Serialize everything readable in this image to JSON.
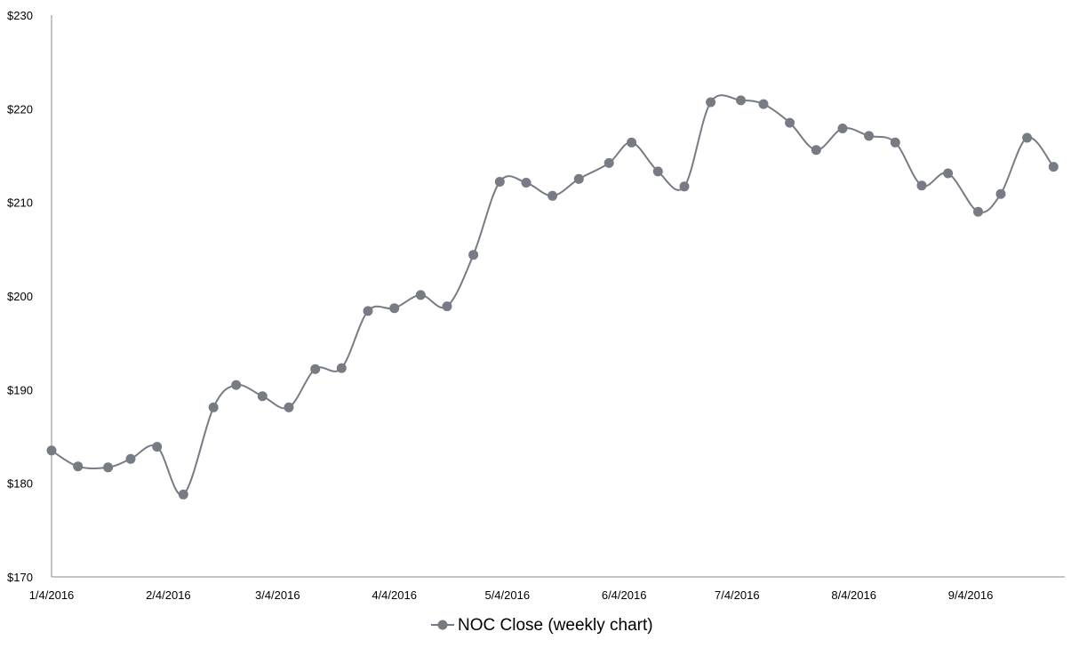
{
  "chart_data": {
    "type": "line",
    "title": "",
    "xlabel": "",
    "ylabel": "",
    "x": [
      "1/4/2016",
      "1/11/2016",
      "1/19/2016",
      "1/25/2016",
      "2/1/2016",
      "2/8/2016",
      "2/16/2016",
      "2/22/2016",
      "2/29/2016",
      "3/7/2016",
      "3/14/2016",
      "3/21/2016",
      "3/28/2016",
      "4/4/2016",
      "4/11/2016",
      "4/18/2016",
      "4/25/2016",
      "5/2/2016",
      "5/9/2016",
      "5/16/2016",
      "5/23/2016",
      "5/31/2016",
      "6/6/2016",
      "6/13/2016",
      "6/20/2016",
      "6/27/2016",
      "7/5/2016",
      "7/11/2016",
      "7/18/2016",
      "7/25/2016",
      "8/1/2016",
      "8/8/2016",
      "8/15/2016",
      "8/22/2016",
      "8/29/2016",
      "9/6/2016",
      "9/12/2016",
      "9/19/2016",
      "9/26/2016"
    ],
    "series": [
      {
        "name": "NOC Close (weekly chart)",
        "values": [
          183.5,
          181.8,
          181.7,
          182.6,
          183.9,
          178.8,
          188.1,
          190.5,
          189.3,
          188.1,
          192.2,
          192.3,
          198.4,
          198.7,
          200.1,
          198.9,
          204.4,
          212.2,
          212.1,
          210.7,
          212.5,
          214.2,
          216.4,
          213.3,
          211.7,
          220.7,
          220.9,
          220.5,
          218.5,
          215.6,
          217.9,
          217.1,
          216.4,
          211.8,
          213.1,
          209.0,
          210.9,
          216.9,
          213.8
        ]
      }
    ],
    "ylim": [
      170,
      230
    ],
    "y_ticks": [
      170,
      180,
      190,
      200,
      210,
      220,
      230
    ],
    "y_tick_labels": [
      "$170",
      "$180",
      "$190",
      "$200",
      "$210",
      "$220",
      "$230"
    ],
    "x_tick_labels": [
      "1/4/2016",
      "2/4/2016",
      "3/4/2016",
      "4/4/2016",
      "5/4/2016",
      "6/4/2016",
      "7/4/2016",
      "8/4/2016",
      "9/4/2016"
    ],
    "x_tick_dates": [
      "2016-01-04",
      "2016-02-04",
      "2016-03-04",
      "2016-04-04",
      "2016-05-04",
      "2016-06-04",
      "2016-07-04",
      "2016-08-04",
      "2016-09-04"
    ],
    "x_range": [
      "2016-01-04",
      "2016-09-29"
    ],
    "grid": false,
    "smooth": true,
    "legend": "bottom-center",
    "colors": {
      "series": "#777b84",
      "axis": "#888888"
    }
  }
}
